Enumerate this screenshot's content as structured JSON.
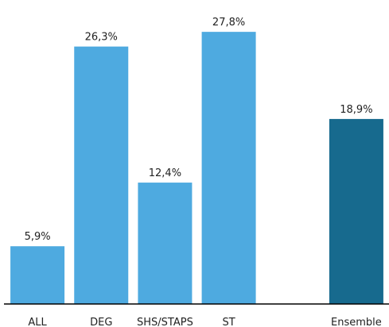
{
  "chart_data": {
    "type": "bar",
    "categories": [
      "ALL",
      "DEG",
      "SHS/STAPS",
      "ST",
      null,
      "Ensemble"
    ],
    "values": [
      5.9,
      26.3,
      12.4,
      27.8,
      null,
      18.9
    ],
    "value_labels": [
      "5,9%",
      "26,3%",
      "12,4%",
      "27,8%",
      null,
      "18,9%"
    ],
    "colors": [
      "#4eaae0",
      "#4eaae0",
      "#4eaae0",
      "#4eaae0",
      null,
      "#176a8e"
    ],
    "ylim": [
      0,
      30
    ]
  }
}
